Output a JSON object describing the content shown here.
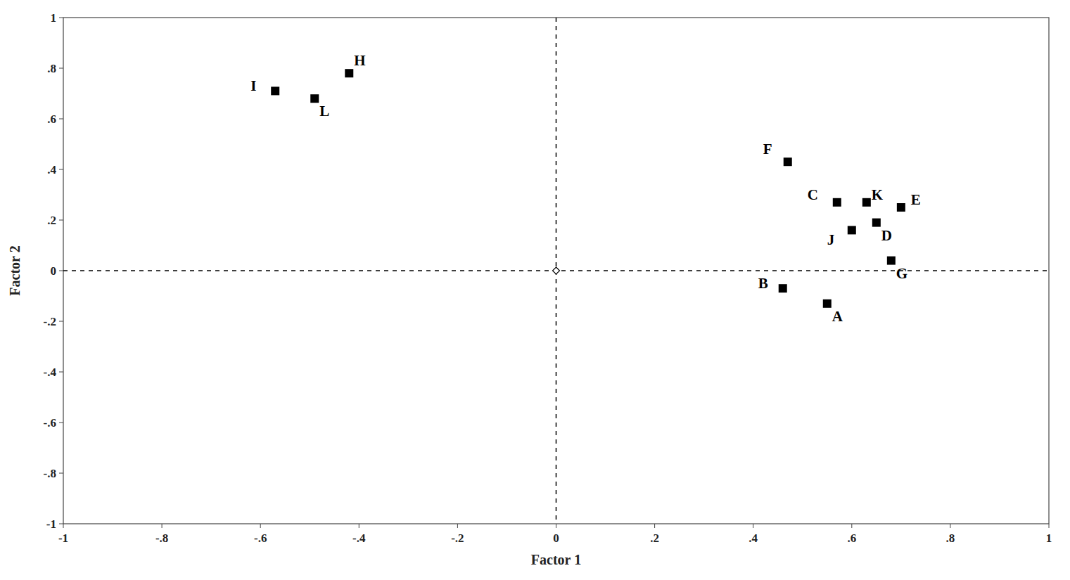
{
  "chart_data": {
    "type": "scatter",
    "xlabel": "Factor 1",
    "ylabel": "Factor 2",
    "labels": [
      "A",
      "B",
      "C",
      "D",
      "E",
      "F",
      "G",
      "H",
      "I",
      "J",
      "K",
      "L"
    ],
    "x": [
      0.55,
      0.46,
      0.57,
      0.65,
      0.7,
      0.47,
      0.68,
      -0.42,
      -0.57,
      0.6,
      0.63,
      -0.49
    ],
    "values": [
      -0.13,
      -0.07,
      0.27,
      0.19,
      0.25,
      0.43,
      0.04,
      0.78,
      0.71,
      0.16,
      0.27,
      0.68
    ],
    "marker": "square",
    "color": "#000000",
    "vline_x": 0,
    "hline_y": 0,
    "xlim": [
      -1,
      1
    ],
    "ylim": [
      -1,
      1
    ],
    "xticks": [
      -1,
      {
        "value": -0.8,
        "label": "-.8"
      },
      {
        "value": -0.6,
        "label": "-.6"
      },
      {
        "value": -0.4,
        "label": "-.4"
      },
      {
        "value": -0.2,
        "label": "-.2"
      },
      0,
      {
        "value": 0.2,
        "label": ".2"
      },
      {
        "value": 0.4,
        "label": ".4"
      },
      {
        "value": 0.6,
        "label": ".6"
      },
      {
        "value": 0.8,
        "label": ".8"
      },
      1
    ],
    "yticks": [
      -1,
      {
        "value": -0.8,
        "label": "-.8"
      },
      {
        "value": -0.6,
        "label": "-.6"
      },
      {
        "value": -0.4,
        "label": "-.4"
      },
      {
        "value": -0.2,
        "label": "-.2"
      },
      0,
      {
        "value": 0.2,
        "label": ".2"
      },
      {
        "value": 0.4,
        "label": ".4"
      },
      {
        "value": 0.6,
        "label": ".6"
      },
      {
        "value": 0.8,
        "label": ".8"
      },
      1
    ],
    "grid": false
  }
}
